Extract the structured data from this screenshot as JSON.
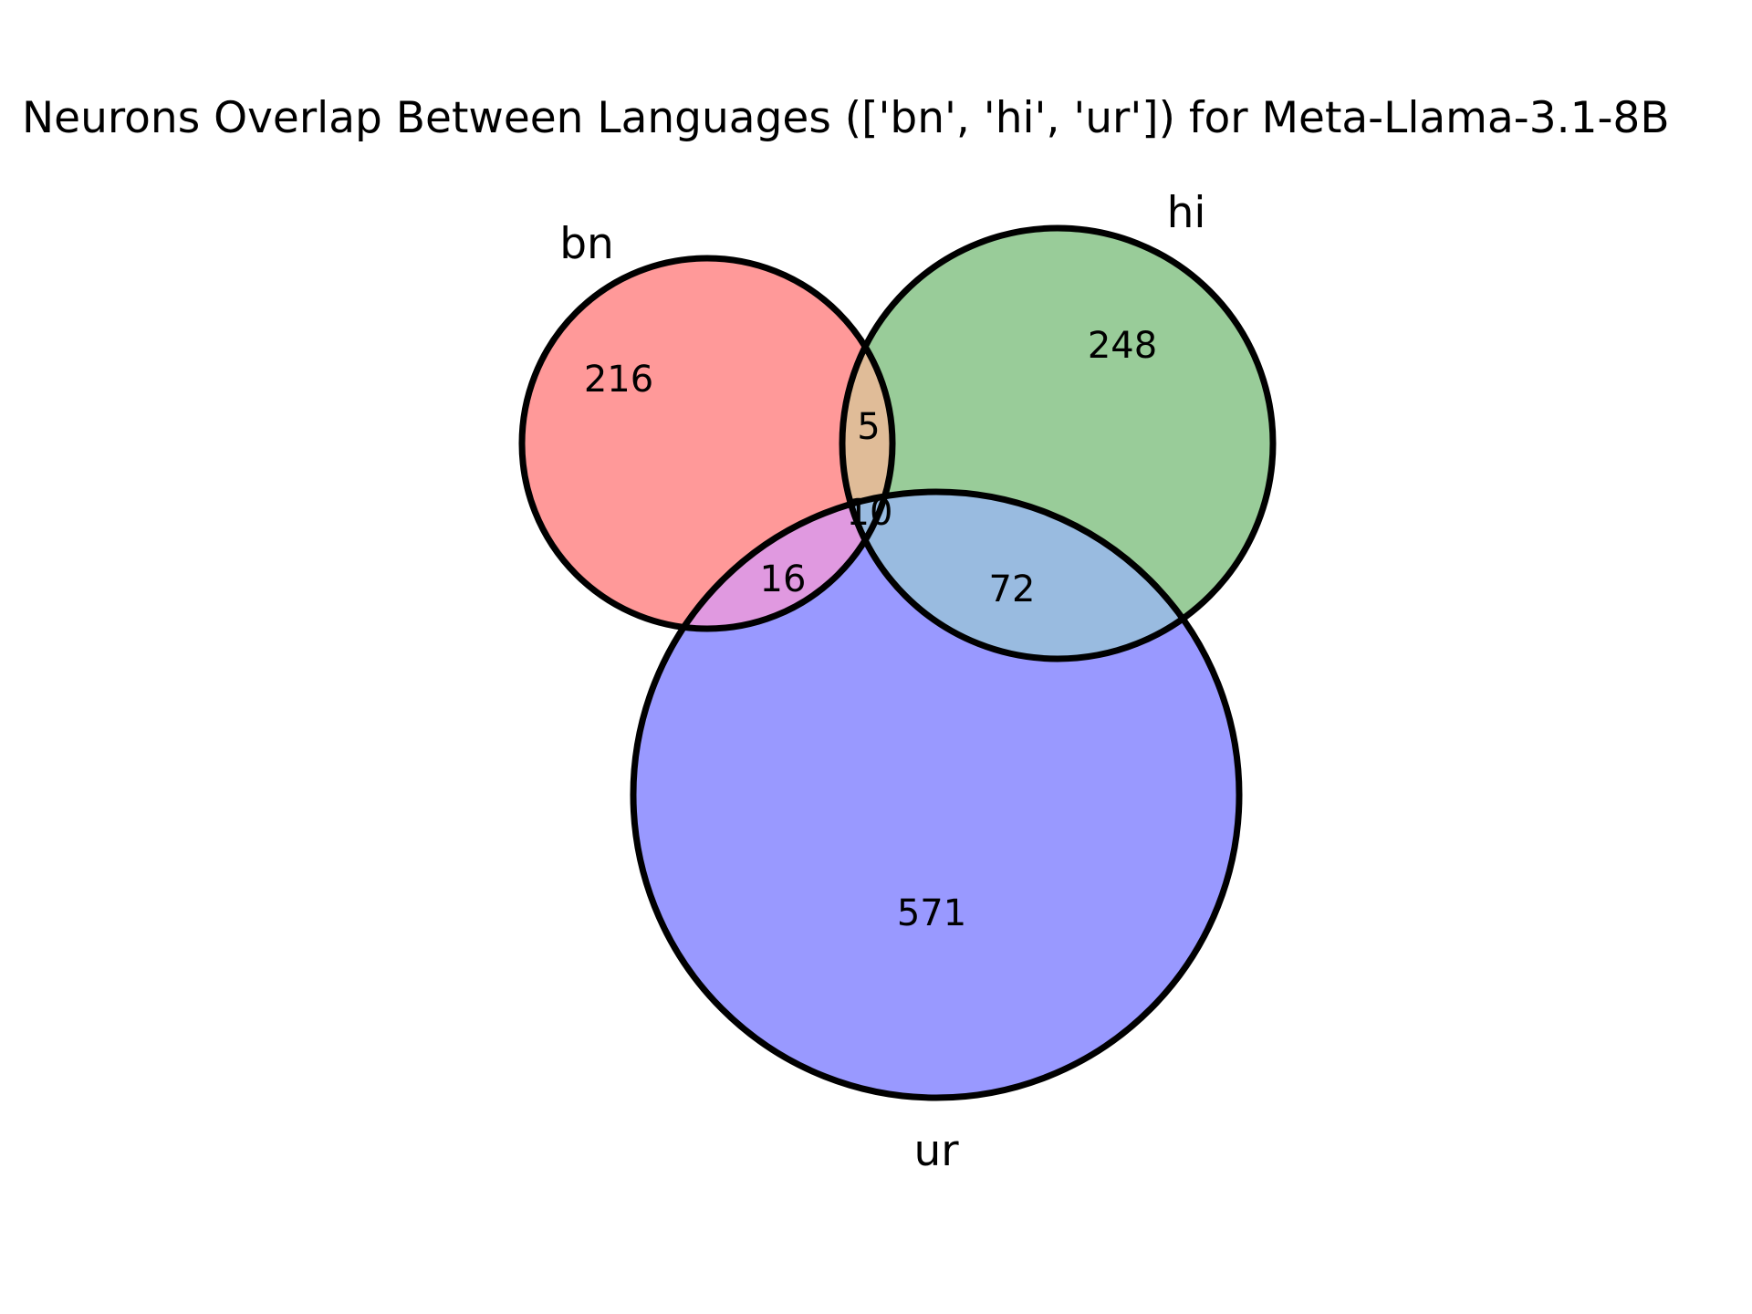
{
  "title": "Neurons Overlap Between Languages (['bn', 'hi', 'ur']) for Meta-Llama-3.1-8B",
  "colors": {
    "bn": "#ff9999",
    "hi": "#99cc99",
    "ur": "#9999ff",
    "bn_hi": "#e0bc98",
    "bn_ur": "#e099e0",
    "hi_ur": "#99bbe0",
    "outline": "#000000"
  },
  "sets": [
    {
      "id": "bn",
      "label": "bn"
    },
    {
      "id": "hi",
      "label": "hi"
    },
    {
      "id": "ur",
      "label": "ur"
    }
  ],
  "regions": {
    "bn_only": "216",
    "hi_only": "248",
    "ur_only": "571",
    "bn_hi": "5",
    "bn_ur": "16",
    "hi_ur": "72",
    "bn_hi_ur": "10"
  }
}
